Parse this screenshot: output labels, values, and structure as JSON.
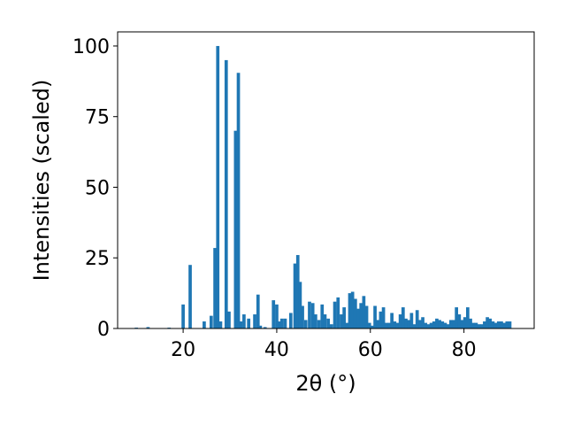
{
  "chart_data": {
    "type": "bar",
    "xlabel": "2θ (°)",
    "ylabel": "Intensities (scaled)",
    "xlim": [
      6,
      95
    ],
    "ylim": [
      0,
      105
    ],
    "x_ticks": [
      20,
      40,
      60,
      80
    ],
    "y_ticks": [
      0,
      25,
      50,
      75,
      100
    ],
    "bar_color": "#1f77b4",
    "bar_width": 0.7,
    "grid": false,
    "legend": "none",
    "x": [
      10.0,
      12.5,
      17.0,
      20.0,
      21.5,
      24.5,
      26.0,
      26.8,
      27.4,
      28.0,
      29.2,
      29.8,
      31.2,
      31.8,
      32.3,
      33.0,
      34.0,
      35.3,
      36.0,
      36.5,
      37.5,
      39.3,
      40.0,
      40.6,
      41.1,
      41.8,
      43.0,
      43.9,
      44.5,
      45.0,
      45.5,
      46.2,
      47.0,
      47.7,
      48.3,
      49.0,
      49.7,
      50.3,
      51.0,
      51.7,
      52.4,
      53.1,
      53.8,
      54.4,
      55.0,
      55.6,
      56.2,
      56.8,
      57.4,
      58.0,
      58.6,
      59.2,
      59.8,
      60.4,
      61.0,
      61.6,
      62.2,
      62.8,
      63.4,
      64.0,
      64.6,
      65.2,
      65.8,
      66.4,
      67.0,
      67.6,
      68.2,
      68.8,
      69.4,
      70.0,
      70.6,
      71.2,
      71.8,
      72.4,
      73.0,
      73.6,
      74.2,
      74.8,
      75.4,
      76.0,
      76.6,
      77.2,
      77.8,
      78.4,
      79.0,
      79.6,
      80.2,
      80.8,
      81.4,
      82.0,
      82.6,
      83.2,
      83.8,
      84.4,
      85.0,
      85.6,
      86.2,
      86.8,
      87.4,
      88.0,
      88.6,
      89.2,
      89.8
    ],
    "values": [
      0.3,
      0.5,
      0.3,
      8.5,
      22.5,
      2.5,
      4.5,
      28.5,
      100,
      2.5,
      95,
      6,
      70,
      90.5,
      2.5,
      5,
      3.5,
      5,
      12,
      1,
      0.5,
      10,
      8.5,
      2.5,
      3.5,
      3.5,
      5.5,
      23,
      26,
      16.5,
      8,
      3,
      9.5,
      9,
      5,
      3,
      8.5,
      5,
      3.5,
      1.5,
      9.5,
      11,
      5,
      7.5,
      2,
      12.5,
      13,
      10.5,
      7,
      9,
      11.5,
      8,
      2,
      1,
      8,
      3,
      6,
      7.5,
      2,
      2,
      5.5,
      2.5,
      2,
      5,
      7.5,
      3.5,
      3,
      5.5,
      1.5,
      6.5,
      3,
      4,
      2,
      1.5,
      2,
      2.5,
      3.5,
      3,
      2.5,
      2,
      1.5,
      3,
      3,
      7.5,
      5,
      3,
      4,
      7.5,
      3.5,
      2,
      2,
      1.5,
      1.5,
      2.5,
      4,
      3.5,
      2.5,
      2,
      2.5,
      2.5,
      2,
      2.5,
      2.5
    ]
  }
}
